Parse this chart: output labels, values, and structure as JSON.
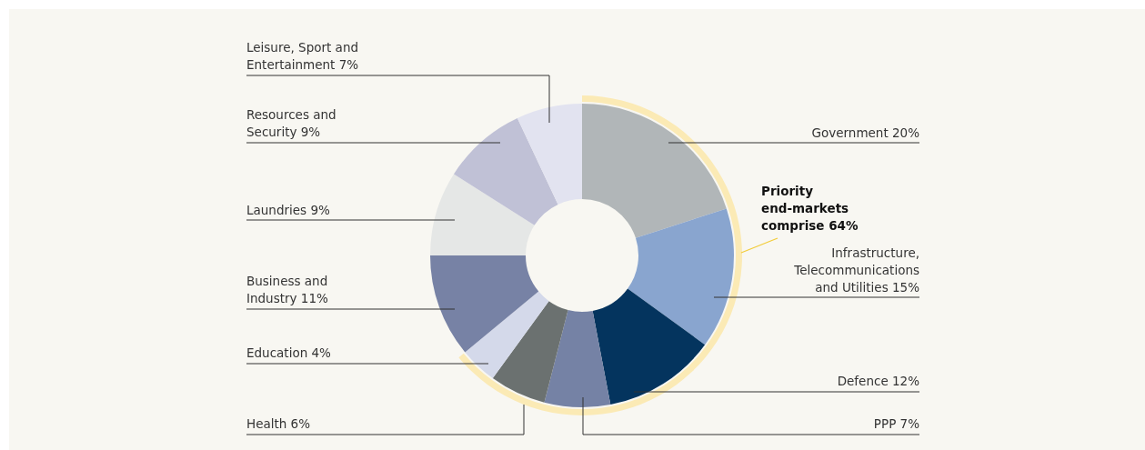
{
  "chart_data": {
    "type": "donut",
    "categories": [
      "Government 20%",
      "Infrastructure,\nTelecommunications\nand Utilities 15%",
      "Defence 12%",
      "PPP 7%",
      "Health 6%",
      "Education 4%",
      "Business and\nIndustry 11%",
      "Laundries 9%",
      "Resources and\nSecurity 9%",
      "Leisure, Sport and\nEntertainment 7%"
    ],
    "values": [
      20,
      15,
      12,
      7,
      6,
      4,
      11,
      9,
      9,
      7
    ],
    "colors": [
      "#b1b6b8",
      "#89a5cf",
      "#04345e",
      "#7582a5",
      "#6b7170",
      "#d4d9ea",
      "#7782a5",
      "#e5e7e6",
      "#c0c1d6",
      "#e2e3f0"
    ],
    "annotations": [
      "Priority\nend-markets\ncomprise 64%"
    ]
  }
}
